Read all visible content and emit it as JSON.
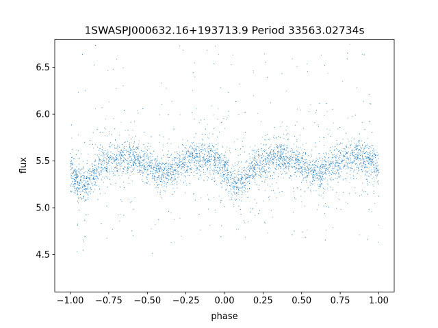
{
  "chart_data": {
    "type": "scatter",
    "title": "1SWASPJ000632.16+193713.9 Period 33563.02734s",
    "xlabel": "phase",
    "ylabel": "flux",
    "xlim": [
      -1.1,
      1.1
    ],
    "ylim": [
      4.1,
      6.8
    ],
    "xticks": [
      -1.0,
      -0.75,
      -0.5,
      -0.25,
      0.0,
      0.25,
      0.5,
      0.75,
      1.0
    ],
    "xtick_labels": [
      "−1.00",
      "−0.75",
      "−0.50",
      "−0.25",
      "0.00",
      "0.25",
      "0.50",
      "0.75",
      "1.00"
    ],
    "yticks": [
      4.5,
      5.0,
      5.5,
      6.0,
      6.5
    ],
    "ytick_labels": [
      "4.5",
      "5.0",
      "5.5",
      "6.0",
      "6.5"
    ],
    "grid": false,
    "legend": "none",
    "marker_color": "#1f77b4",
    "profile": {
      "phase": [
        0.0,
        0.05,
        0.1,
        0.15,
        0.2,
        0.25,
        0.3,
        0.35,
        0.4,
        0.45,
        0.5,
        0.55,
        0.6,
        0.65,
        0.7,
        0.75,
        0.8,
        0.85,
        0.9,
        0.95,
        1.0
      ],
      "flux": [
        5.4,
        5.28,
        5.25,
        5.35,
        5.45,
        5.5,
        5.53,
        5.54,
        5.53,
        5.5,
        5.45,
        5.4,
        5.37,
        5.4,
        5.45,
        5.5,
        5.55,
        5.55,
        5.52,
        5.48,
        5.4
      ]
    }
  }
}
